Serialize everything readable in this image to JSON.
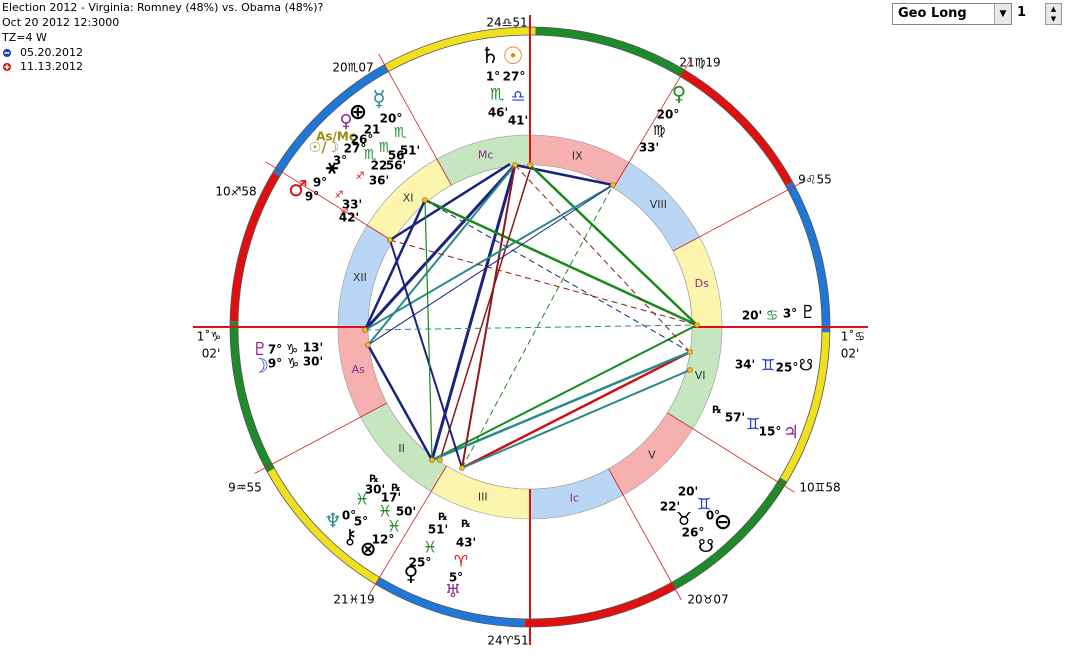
{
  "header": {
    "title": "Election 2012 - Virginia: Romney (48%) vs. Obama (48%)?",
    "datetime": "Oct 20 2012 12:3000",
    "timezone": "TZ=4 W"
  },
  "legend": [
    "05.20.2012",
    "11.13.2012"
  ],
  "controls": {
    "select": "Geo Long",
    "spinner": "1"
  },
  "cusps": [
    "24♎51",
    "21♍19",
    "9♌55",
    "1˚♋",
    "02'",
    "10♊58",
    "20♉07",
    "24♈51",
    "21♓19",
    "9♒55",
    "1˚♑",
    "02'",
    "10♐58",
    "20♏07"
  ],
  "houses": [
    "As",
    "II",
    "III",
    "Ic",
    "V",
    "VI",
    "Ds",
    "VIII",
    "IX",
    "Mc",
    "XI",
    "XII"
  ],
  "labels": [
    "♄",
    "☉",
    "1°",
    "27°",
    "♏",
    "♎",
    "46'",
    "41'",
    "♀",
    "20°",
    "♍",
    "33'",
    "20'",
    "♋",
    "3°",
    "♇",
    "34'",
    "♊",
    "25°",
    "☋",
    "℞",
    "57'",
    "♊",
    "15°",
    "♃",
    "20'",
    "♊",
    "22'",
    "0°",
    "♉",
    "⊖",
    "26°",
    "☋",
    "℞",
    "51'",
    "℞",
    "43'",
    "♓",
    "♈",
    "♀",
    "25°",
    "5°",
    "♅",
    "℞",
    "30'",
    "℞",
    "17'",
    "♓",
    "♓",
    "50'",
    "♆",
    "0°",
    "5°",
    "♓",
    "⚷",
    "12°",
    "⊗",
    "♇",
    "7°",
    "♑",
    "13'",
    "☽",
    "9°",
    "♑",
    "30'",
    "☿",
    "⊕",
    "20°",
    "♀",
    "21",
    "As/Mc",
    "26°",
    "♏",
    "☉/☽",
    "27°",
    "♏",
    "51'",
    "3°",
    "♏",
    "56'",
    "22",
    "56'",
    "⚹",
    "♐",
    "36'",
    "♂",
    "9°",
    "9°",
    "♐",
    "33'",
    "♐",
    "42'"
  ]
}
